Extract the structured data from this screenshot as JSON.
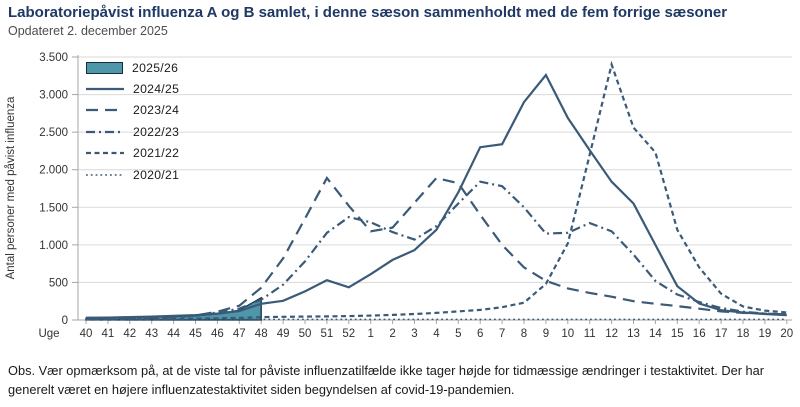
{
  "header": {
    "title": "Laboratoriepåvist influenza A og B samlet, i denne sæson sammenholdt med de fem forrige sæsoner",
    "subtitle": "Opdateret 2. december 2025"
  },
  "footer": {
    "note": "Obs. Vær opmærksom på, at de viste tal for påviste influenzatilfælde ikke tager højde for tidmæssige ændringer i testaktivitet. Der har generelt  været en højere  influenzatestaktivitet siden begyndelsen  af covid-19-pandemien."
  },
  "chart_data": {
    "type": "line",
    "xlabel": "Uge",
    "ylabel": "Antal personer med påvist influenza",
    "ylim": [
      0,
      3500
    ],
    "ytick_step": 500,
    "ytick_labels": [
      "0",
      "500",
      "1.000",
      "1.500",
      "2.000",
      "2.500",
      "3.000",
      "3.500"
    ],
    "grid": "horizontal",
    "legend_position": "top-left",
    "colors": {
      "line": "#3A5A78",
      "area_fill": "#4E97A8",
      "area_edge": "#152C42",
      "grid": "#D9D9D9",
      "axis": "#A6A6A6",
      "tick_text": "#333333"
    },
    "categories": [
      "40",
      "41",
      "42",
      "43",
      "44",
      "45",
      "46",
      "47",
      "48",
      "49",
      "50",
      "51",
      "52",
      "1",
      "2",
      "3",
      "4",
      "5",
      "6",
      "7",
      "8",
      "9",
      "10",
      "11",
      "12",
      "13",
      "14",
      "15",
      "16",
      "17",
      "18",
      "19",
      "20"
    ],
    "series": [
      {
        "name": "2025/26",
        "style": "area",
        "values": [
          25,
          28,
          32,
          38,
          45,
          55,
          80,
          130,
          295,
          null,
          null,
          null,
          null,
          null,
          null,
          null,
          null,
          null,
          null,
          null,
          null,
          null,
          null,
          null,
          null,
          null,
          null,
          null,
          null,
          null,
          null,
          null,
          null
        ]
      },
      {
        "name": "2024/25",
        "style": "solid",
        "values": [
          30,
          32,
          38,
          45,
          55,
          65,
          85,
          120,
          215,
          255,
          380,
          530,
          435,
          610,
          800,
          930,
          1200,
          1700,
          2300,
          2340,
          2900,
          3260,
          2690,
          2260,
          1840,
          1550,
          1000,
          450,
          220,
          130,
          100,
          80,
          65
        ]
      },
      {
        "name": "2023/24",
        "style": "long-dash",
        "values": [
          12,
          14,
          18,
          25,
          40,
          60,
          110,
          190,
          430,
          820,
          1350,
          1890,
          1520,
          1180,
          1230,
          1560,
          1890,
          1820,
          1400,
          1000,
          700,
          520,
          420,
          360,
          310,
          250,
          215,
          185,
          150,
          115,
          95,
          85,
          75
        ]
      },
      {
        "name": "2022/23",
        "style": "dash-dot",
        "values": [
          15,
          18,
          22,
          28,
          40,
          60,
          100,
          150,
          270,
          470,
          780,
          1160,
          1370,
          1300,
          1170,
          1070,
          1250,
          1550,
          1840,
          1780,
          1500,
          1150,
          1160,
          1290,
          1180,
          870,
          520,
          340,
          240,
          160,
          110,
          85,
          75
        ]
      },
      {
        "name": "2021/22",
        "style": "dash",
        "values": [
          8,
          8,
          10,
          12,
          15,
          18,
          22,
          28,
          38,
          42,
          45,
          48,
          52,
          58,
          68,
          80,
          95,
          115,
          135,
          170,
          230,
          480,
          1020,
          2200,
          3400,
          2560,
          2230,
          1200,
          700,
          350,
          180,
          125,
          100
        ]
      },
      {
        "name": "2020/21",
        "style": "dot",
        "values": [
          15,
          12,
          10,
          9,
          8,
          8,
          8,
          8,
          8,
          8,
          8,
          8,
          8,
          8,
          8,
          8,
          8,
          8,
          8,
          8,
          8,
          8,
          8,
          8,
          8,
          8,
          8,
          8,
          8,
          8,
          8,
          8,
          8
        ]
      }
    ]
  }
}
